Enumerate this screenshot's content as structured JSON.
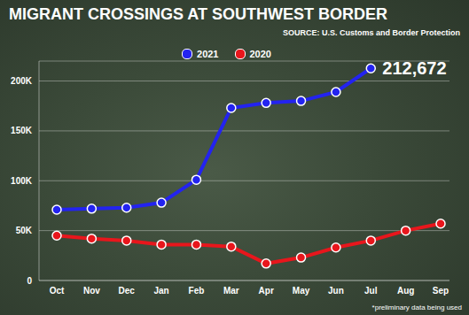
{
  "chart_data": {
    "type": "line",
    "title": "MIGRANT CROSSINGS AT SOUTHWEST BORDER",
    "source": "SOURCE: U.S. Customs and Border Protection",
    "note": "*preliminary data being used",
    "categories": [
      "Oct",
      "Nov",
      "Dec",
      "Jan",
      "Feb",
      "Mar",
      "Apr",
      "May",
      "Jun",
      "Jul",
      "Aug",
      "Sep"
    ],
    "series": [
      {
        "name": "2021",
        "color": "#2323f0",
        "values": [
          71000,
          72000,
          73000,
          78000,
          101000,
          173000,
          178000,
          180000,
          189000,
          212672,
          null,
          null
        ]
      },
      {
        "name": "2020",
        "color": "#e8161c",
        "values": [
          45000,
          42000,
          40000,
          36000,
          36000,
          34000,
          17000,
          23000,
          33000,
          40000,
          50000,
          57000
        ]
      }
    ],
    "ylim": [
      0,
      220000
    ],
    "yticks": [
      0,
      {
        "value": 50000,
        "label": "50K"
      },
      {
        "value": 100000,
        "label": "100K"
      },
      {
        "value": 150000,
        "label": "150K"
      },
      {
        "value": 200000,
        "label": "200K"
      }
    ],
    "grid": true,
    "legend": "top",
    "marker": "circle",
    "annotations": [
      {
        "text": "212,672",
        "x": "Jul",
        "y": 212672
      }
    ]
  }
}
